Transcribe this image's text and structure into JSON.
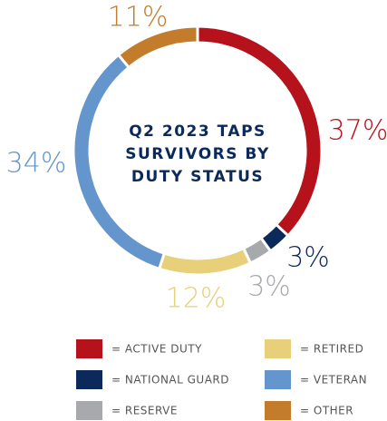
{
  "chart_data": {
    "type": "donut",
    "title_lines": [
      "Q2 2023 TAPS",
      "SURVIVORS BY",
      "DUTY STATUS"
    ],
    "categories": [
      "= ACTIVE DUTY",
      "= NATIONAL GUARD",
      "= RESERVE",
      "= RETIRED",
      "= VETERAN",
      "= OTHER"
    ],
    "values": [
      37,
      3,
      3,
      12,
      34,
      11
    ],
    "value_labels": [
      "37%",
      "3%",
      "3%",
      "12%",
      "34%",
      "11%"
    ],
    "colors": [
      "#b5121b",
      "#0b2a5b",
      "#a7a9ac",
      "#e8cf7a",
      "#6495cc",
      "#c27c2c"
    ]
  }
}
